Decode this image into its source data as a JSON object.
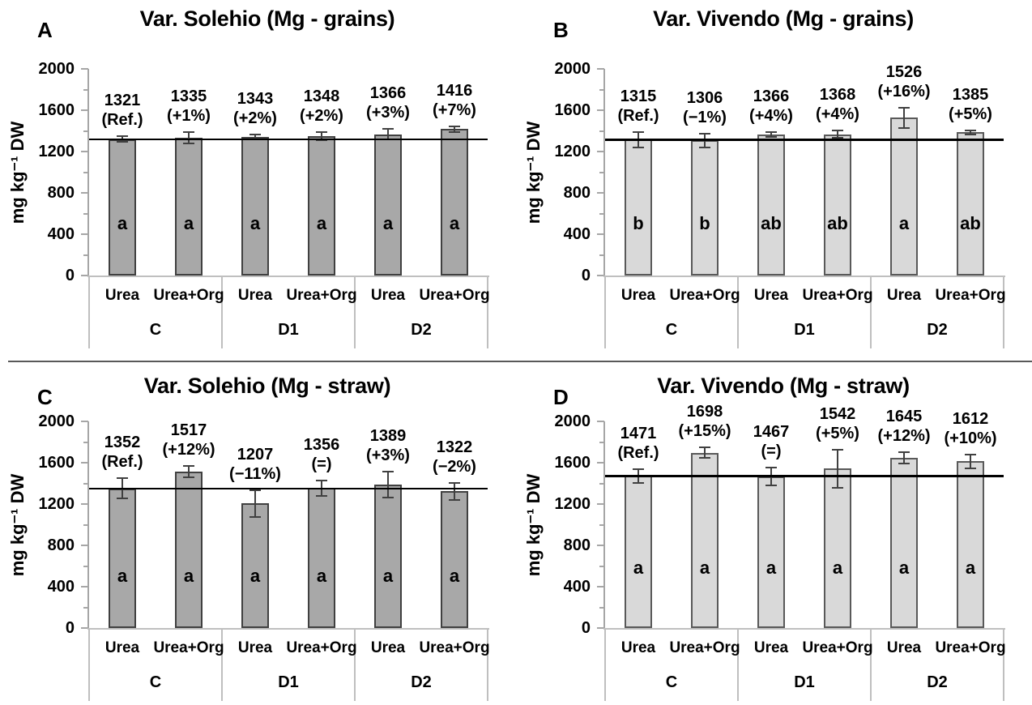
{
  "figure": {
    "background": "#ffffff",
    "divider_color": "#595959"
  },
  "styles": {
    "axis_line_color": "#bfbfbf",
    "tick_color": "#a6a6a6",
    "error_bar_color": "#404040",
    "ref_line_color": "#000000",
    "text_color": "#000000"
  },
  "chart_data": [
    {
      "type": "bar",
      "panel_label": "A",
      "title": "Var. Solehio (Mg - grains)",
      "ylabel": "mg kg⁻¹ DW",
      "ylim": [
        0,
        2000
      ],
      "yticks_labeled": [
        0,
        400,
        800,
        1200,
        1600,
        2000
      ],
      "yticks_minor": [
        200,
        600,
        1000,
        1400,
        1800
      ],
      "group_labels": [
        "C",
        "D1",
        "D2"
      ],
      "categories": [
        "Urea",
        "Urea+Org",
        "Urea",
        "Urea+Org",
        "Urea",
        "Urea+Org"
      ],
      "values": [
        1321,
        1335,
        1343,
        1348,
        1366,
        1416
      ],
      "errors_est": [
        30,
        55,
        25,
        40,
        50,
        30
      ],
      "value_labels": [
        "1321",
        "1335",
        "1343",
        "1348",
        "1366",
        "1416"
      ],
      "pct_labels": [
        "(Ref.)",
        "(+1%)",
        "(+2%)",
        "(+2%)",
        "(+3%)",
        "(+7%)"
      ],
      "sig_letters": [
        "a",
        "a",
        "a",
        "a",
        "a",
        "a"
      ],
      "letter_y": 500,
      "ref_line_y": 1321,
      "bar_fill": "#a8a8a8",
      "bar_border": "#404040"
    },
    {
      "type": "bar",
      "panel_label": "B",
      "title": "Var. Vivendo (Mg - grains)",
      "ylabel": "mg kg⁻¹ DW",
      "ylim": [
        0,
        2000
      ],
      "yticks_labeled": [
        0,
        400,
        800,
        1200,
        1600,
        2000
      ],
      "yticks_minor": [
        200,
        600,
        1000,
        1400,
        1800
      ],
      "group_labels": [
        "C",
        "D1",
        "D2"
      ],
      "categories": [
        "Urea",
        "Urea+Org",
        "Urea",
        "Urea+Org",
        "Urea",
        "Urea+Org"
      ],
      "values": [
        1315,
        1306,
        1366,
        1368,
        1526,
        1385
      ],
      "errors_est": [
        75,
        70,
        25,
        35,
        100,
        20
      ],
      "value_labels": [
        "1315",
        "1306",
        "1366",
        "1368",
        "1526",
        "1385"
      ],
      "pct_labels": [
        "(Ref.)",
        "(−1%)",
        "(+4%)",
        "(+4%)",
        "(+16%)",
        "(+5%)"
      ],
      "sig_letters": [
        "b",
        "b",
        "ab",
        "ab",
        "a",
        "ab"
      ],
      "letter_y": 500,
      "ref_line_y": 1315,
      "bar_fill": "#d9d9d9",
      "bar_border": "#595959"
    },
    {
      "type": "bar",
      "panel_label": "C",
      "title": "Var. Solehio (Mg - straw)",
      "ylabel": "mg kg⁻¹ DW",
      "ylim": [
        0,
        2000
      ],
      "yticks_labeled": [
        0,
        400,
        800,
        1200,
        1600,
        2000
      ],
      "yticks_minor": [
        200,
        600,
        1000,
        1400,
        1800
      ],
      "group_labels": [
        "C",
        "D1",
        "D2"
      ],
      "categories": [
        "Urea",
        "Urea+Org",
        "Urea",
        "Urea+Org",
        "Urea",
        "Urea+Org"
      ],
      "values": [
        1352,
        1517,
        1207,
        1356,
        1389,
        1322
      ],
      "errors_est": [
        100,
        55,
        130,
        75,
        125,
        85
      ],
      "value_labels": [
        "1352",
        "1517",
        "1207",
        "1356",
        "1389",
        "1322"
      ],
      "pct_labels": [
        "(Ref.)",
        "(+12%)",
        "(−11%)",
        "(=)",
        "(+3%)",
        "(−2%)"
      ],
      "sig_letters": [
        "a",
        "a",
        "a",
        "a",
        "a",
        "a"
      ],
      "letter_y": 500,
      "ref_line_y": 1352,
      "bar_fill": "#a8a8a8",
      "bar_border": "#404040"
    },
    {
      "type": "bar",
      "panel_label": "D",
      "title": "Var. Vivendo (Mg - straw)",
      "ylabel": "mg kg⁻¹ DW",
      "ylim": [
        0,
        2000
      ],
      "yticks_labeled": [
        0,
        400,
        800,
        1200,
        1600,
        2000
      ],
      "yticks_minor": [
        200,
        600,
        1000,
        1400,
        1800
      ],
      "group_labels": [
        "C",
        "D1",
        "D2"
      ],
      "categories": [
        "Urea",
        "Urea+Org",
        "Urea",
        "Urea+Org",
        "Urea",
        "Urea+Org"
      ],
      "values": [
        1471,
        1698,
        1467,
        1542,
        1645,
        1612
      ],
      "errors_est": [
        70,
        50,
        85,
        185,
        55,
        70
      ],
      "value_labels": [
        "1471",
        "1698",
        "1467",
        "1542",
        "1645",
        "1612"
      ],
      "pct_labels": [
        "(Ref.)",
        "(+15%)",
        "(=)",
        "(+5%)",
        "(+12%)",
        "(+10%)"
      ],
      "sig_letters": [
        "a",
        "a",
        "a",
        "a",
        "a",
        "a"
      ],
      "letter_y": 580,
      "ref_line_y": 1471,
      "bar_fill": "#d9d9d9",
      "bar_border": "#595959"
    }
  ]
}
